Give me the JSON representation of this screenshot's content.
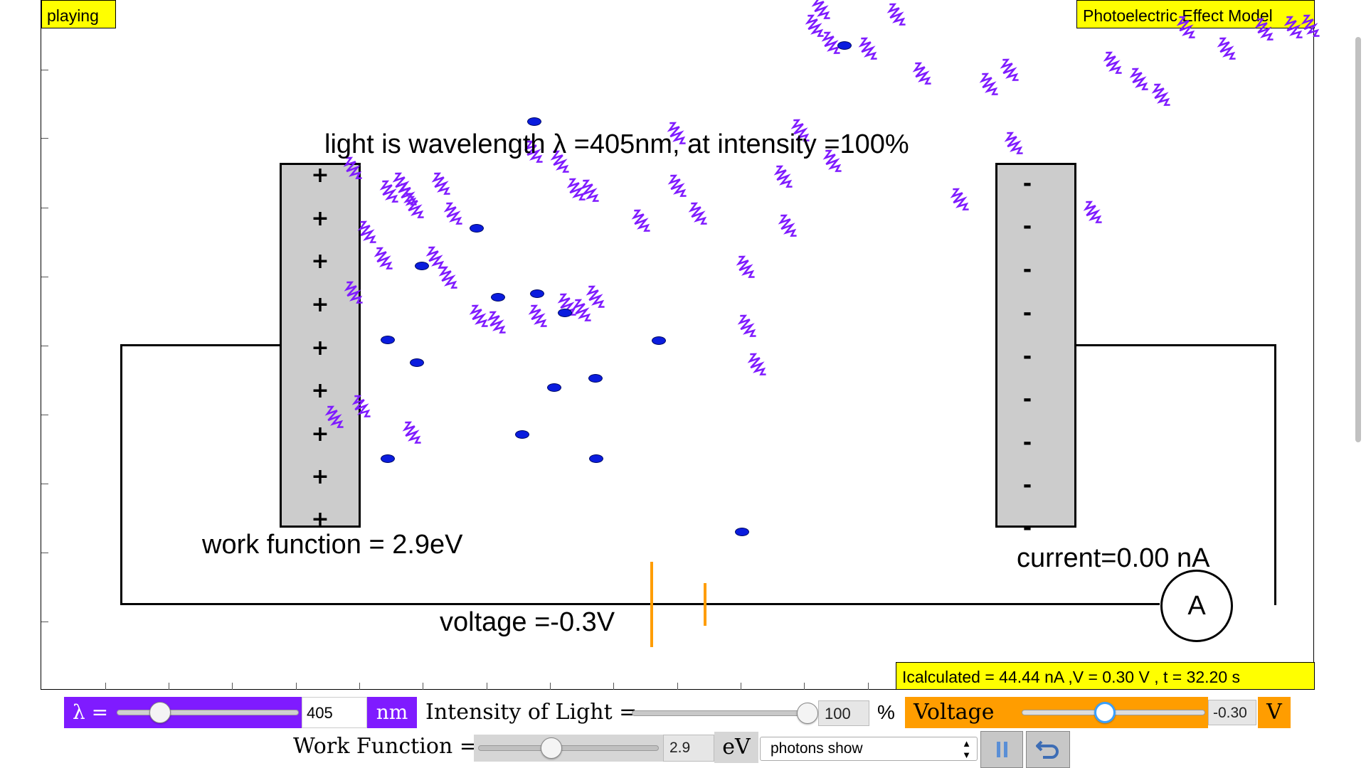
{
  "status": "playing",
  "model_title": "Photoelectric Effect Model",
  "light_info": "light is wavelength λ =405nm, at intensity =100%",
  "work_function_label": "work function = 2.9eV",
  "voltage_label": "voltage =-0.3V",
  "current_label": "current=0.00 nA",
  "ammeter_label": "A",
  "calc_readout": "Icalculated = 44.44 nA ,V = 0.30 V , t = 32.20 s",
  "plus_sign": "+",
  "minus_sign": "-",
  "controls": {
    "lambda_label": "λ =",
    "lambda_value": "405",
    "lambda_unit": "nm",
    "lambda_fraction": 0.24,
    "intensity_label": "Intensity of Light =",
    "intensity_value": "100",
    "intensity_unit": "%",
    "intensity_fraction": 1.0,
    "voltage_label": "Voltage =",
    "voltage_value": "-0.30",
    "voltage_unit": "V",
    "voltage_fraction": 0.45,
    "work_function_label": "Work Function =",
    "work_function_value": "2.9",
    "work_function_unit": "eV",
    "work_function_fraction": 0.38,
    "display_mode_selected": "photons show",
    "pause_icon": "pause-icon",
    "reset_icon": "reset-icon"
  },
  "colors": {
    "photon": "#7f1bff",
    "electron": "#0a1cde",
    "battery": "#ff9d00",
    "highlight": "#ffff00"
  }
}
